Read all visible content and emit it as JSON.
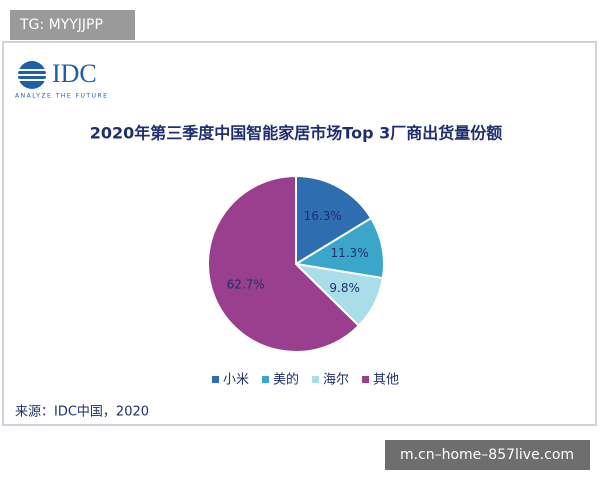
{
  "watermark_top": "TG: MYYJJPP",
  "watermark_bottom": "m.cn–home–857live.com",
  "logo": {
    "name": "IDC",
    "tagline": "ANALYZE THE FUTURE"
  },
  "source": "来源：IDC中国，2020",
  "chart_data": {
    "type": "pie",
    "title": "2020年第三季度中国智能家居市场Top 3厂商出货量份额",
    "categories": [
      "小米",
      "美的",
      "海尔",
      "其他"
    ],
    "values": [
      16.3,
      11.3,
      9.8,
      62.7
    ],
    "value_labels": [
      "16.3%",
      "11.3%",
      "9.8%",
      "62.7%"
    ],
    "colors": [
      "#2e6db0",
      "#3aa6c9",
      "#a9dde9",
      "#9a3f8e"
    ],
    "legend": "bottom"
  }
}
